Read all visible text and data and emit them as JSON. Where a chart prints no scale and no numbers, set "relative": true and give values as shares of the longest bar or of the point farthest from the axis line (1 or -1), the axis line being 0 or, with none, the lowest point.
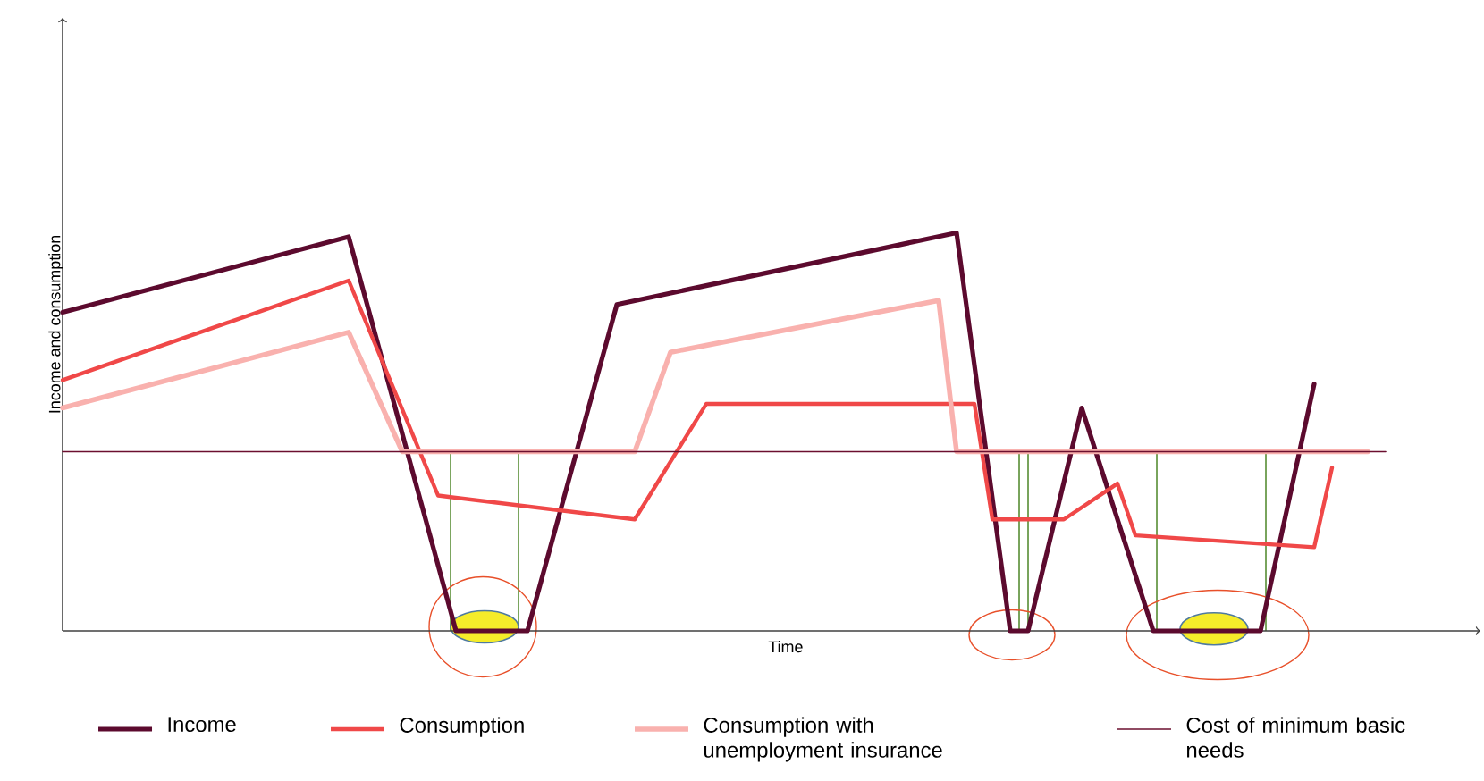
{
  "chart_data": {
    "type": "line",
    "relative": true,
    "xlabel": "Time",
    "ylabel": "Income and consumption",
    "tick_labels": false,
    "legend": "bottom",
    "line_style": "solid",
    "marker": "none",
    "categories": [
      null,
      null,
      null,
      null,
      null,
      null,
      null,
      null,
      null,
      null,
      null,
      null,
      null,
      null,
      null,
      null,
      null,
      null,
      null,
      null,
      null,
      null,
      null,
      null,
      null,
      null,
      null,
      null,
      null,
      null,
      null,
      null,
      null,
      null,
      null,
      null,
      null,
      null,
      null,
      null,
      null,
      null,
      null,
      null,
      null,
      null,
      null,
      null,
      null,
      null,
      null,
      null,
      null,
      null,
      null,
      null,
      null,
      null,
      null,
      null,
      null,
      null,
      null,
      null,
      null,
      null,
      null,
      null,
      null,
      null,
      null,
      null,
      null,
      null,
      null
    ],
    "series": [
      {
        "name": "Income",
        "color": "#5c0a2e",
        "values": [
          0.8,
          null,
          null,
          null,
          null,
          null,
          null,
          null,
          null,
          null,
          null,
          null,
          null,
          null,
          null,
          null,
          0.99,
          null,
          null,
          null,
          null,
          null,
          0,
          null,
          null,
          null,
          0,
          null,
          null,
          null,
          null,
          0.82,
          null,
          null,
          null,
          null,
          null,
          null,
          null,
          null,
          null,
          null,
          null,
          null,
          null,
          null,
          null,
          null,
          null,
          null,
          1.0,
          null,
          null,
          0,
          0,
          null,
          null,
          0.56,
          null,
          null,
          null,
          0,
          null,
          null,
          null,
          null,
          null,
          0,
          null,
          null,
          0.62,
          null,
          null,
          null,
          null
        ]
      },
      {
        "name": "Consumption",
        "color": "#f04848",
        "values": [
          0.63,
          null,
          null,
          null,
          null,
          null,
          null,
          null,
          null,
          null,
          null,
          null,
          null,
          null,
          null,
          null,
          0.88,
          null,
          null,
          null,
          null,
          0.34,
          null,
          null,
          null,
          null,
          null,
          null,
          null,
          null,
          null,
          null,
          0.28,
          null,
          null,
          null,
          0.57,
          null,
          null,
          null,
          null,
          null,
          null,
          null,
          null,
          null,
          null,
          null,
          null,
          null,
          null,
          0.57,
          0.28,
          null,
          null,
          null,
          0.28,
          null,
          null,
          0.37,
          0.24,
          null,
          null,
          null,
          null,
          null,
          null,
          null,
          null,
          null,
          0.21,
          0.41,
          null,
          null,
          null
        ]
      },
      {
        "name": "Consumption with unemployment insurance",
        "color": "#f9b1ae",
        "values": [
          0.56,
          null,
          null,
          null,
          null,
          null,
          null,
          null,
          null,
          null,
          null,
          null,
          null,
          null,
          null,
          null,
          0.75,
          null,
          null,
          0.45,
          null,
          null,
          null,
          null,
          null,
          null,
          null,
          null,
          null,
          null,
          null,
          null,
          0.45,
          null,
          0.7,
          null,
          null,
          null,
          null,
          null,
          null,
          null,
          null,
          null,
          null,
          null,
          null,
          null,
          null,
          0.83,
          0.45,
          null,
          null,
          null,
          null,
          null,
          null,
          null,
          null,
          null,
          null,
          null,
          null,
          null,
          null,
          null,
          null,
          null,
          null,
          null,
          null,
          null,
          null,
          0.45,
          null
        ]
      },
      {
        "name": "Cost of minimum basic needs",
        "color": "#6b0f2f",
        "values": [
          0.45,
          null,
          null,
          null,
          null,
          null,
          null,
          null,
          null,
          null,
          null,
          null,
          null,
          null,
          null,
          null,
          null,
          null,
          null,
          null,
          null,
          null,
          null,
          null,
          null,
          null,
          null,
          null,
          null,
          null,
          null,
          null,
          null,
          null,
          null,
          null,
          null,
          null,
          null,
          null,
          null,
          null,
          null,
          null,
          null,
          null,
          null,
          null,
          null,
          null,
          null,
          null,
          null,
          null,
          null,
          null,
          null,
          null,
          null,
          null,
          null,
          null,
          null,
          null,
          null,
          null,
          null,
          null,
          null,
          null,
          null,
          null,
          null,
          null,
          0.45
        ]
      }
    ]
  }
}
